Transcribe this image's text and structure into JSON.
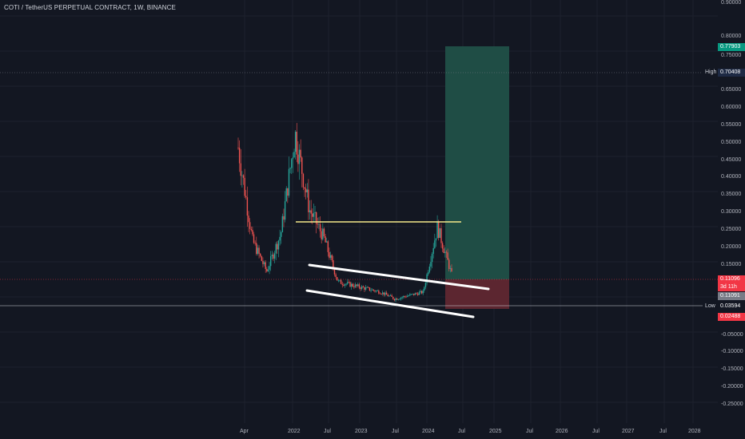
{
  "symbol": {
    "title": "COTI / TetherUS PERPETUAL CONTRACT, 1W, BINANCE"
  },
  "price_axis": {
    "ticks": [
      "0.90000",
      "0.80000",
      "0.75000",
      "0.65000",
      "0.60000",
      "0.55000",
      "0.50000",
      "0.45000",
      "0.40000",
      "0.35000",
      "0.30000",
      "0.25000",
      "0.20000",
      "0.15000",
      "-0.05000",
      "-0.10000",
      "-0.15000",
      "-0.20000",
      "-0.25000"
    ]
  },
  "time_axis": {
    "ticks": [
      "Apr",
      "2022",
      "Jul",
      "2023",
      "Jul",
      "2024",
      "Jul",
      "2025",
      "Jul",
      "2026",
      "Jul",
      "2027",
      "Jul",
      "2028"
    ]
  },
  "badges": {
    "target_price": "0.77903",
    "high_label": "High",
    "high_price": "0.70408",
    "current_price": "0.11096",
    "countdown": "3d 11h",
    "entry_price": "0.11091",
    "low_label": "Low",
    "low_price": "0.03594",
    "stop_price": "0.02488"
  },
  "colors": {
    "background": "#131722",
    "up_candle": "#26a69a",
    "down_candle": "#ef5350",
    "profit_zone": "#1f4d45",
    "loss_zone": "#5c2630",
    "resistance_line": "#f5e98a",
    "trendline": "#ffffff",
    "target_badge": "#089981",
    "high_badge": "#1e2a44",
    "stop_badge": "#f23645"
  },
  "chart_data": {
    "type": "candlestick",
    "title": "COTI / TetherUS PERPETUAL CONTRACT, 1W, BINANCE",
    "x": [
      "2021-03",
      "2021-05",
      "2021-07",
      "2021-09",
      "2021-11",
      "2022-01",
      "2022-04",
      "2022-07",
      "2022-10",
      "2023-01",
      "2023-04",
      "2023-07",
      "2023-10",
      "2024-01",
      "2024-03",
      "2024-05"
    ],
    "close": [
      0.48,
      0.21,
      0.12,
      0.23,
      0.52,
      0.3,
      0.22,
      0.09,
      0.08,
      0.07,
      0.06,
      0.04,
      0.05,
      0.06,
      0.25,
      0.111
    ],
    "high_marker": 0.70408,
    "low_marker": 0.03594,
    "ylim": [
      -0.27,
      0.9
    ],
    "annotations": {
      "resistance_level": 0.275,
      "long_position": {
        "entry": 0.11091,
        "target": 0.77903,
        "stop": 0.02488
      }
    }
  }
}
